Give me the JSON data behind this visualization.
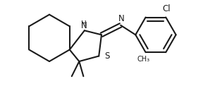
{
  "bg_color": "#ffffff",
  "line_color": "#1a1a1a",
  "line_width": 1.5,
  "font_size": 8.5,
  "figsize": [
    2.88,
    1.56
  ],
  "dpi": 100,
  "xlim": [
    -1.3,
    2.5
  ],
  "ylim": [
    -0.85,
    0.85
  ]
}
